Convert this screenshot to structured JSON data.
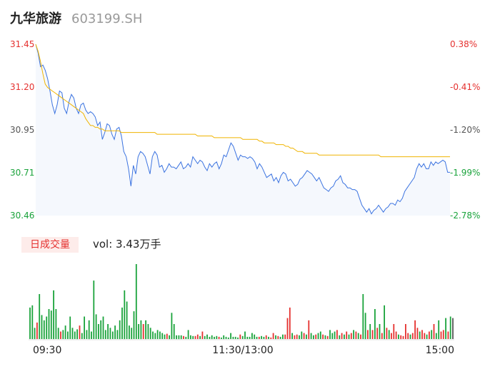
{
  "header": {
    "name": "九华旅游",
    "code": "603199.SH"
  },
  "volume": {
    "tag": "日成交量",
    "label": "vol: 3.43万手"
  },
  "chart_data": {
    "type": "line",
    "price_ticks": [
      "31.45",
      "31.20",
      "30.95",
      "30.71",
      "30.46"
    ],
    "pct_ticks": [
      "0.38%",
      "-0.41%",
      "-1.20%",
      "-1.99%",
      "-2.78%"
    ],
    "ylim": [
      30.46,
      31.45
    ],
    "time_labels": [
      "09:30",
      "11:30/13:00",
      "15:00"
    ],
    "colors": {
      "price": "#3b73e0",
      "avg": "#f0b400",
      "up": "#e5312f",
      "down": "#1aa33b",
      "neutral": "#555555"
    },
    "price_series": [
      31.45,
      31.4,
      31.32,
      31.33,
      31.3,
      31.25,
      31.18,
      31.1,
      31.05,
      31.1,
      31.18,
      31.17,
      31.08,
      31.05,
      31.12,
      31.16,
      31.14,
      31.08,
      31.05,
      31.1,
      31.11,
      31.07,
      31.05,
      31.06,
      31.05,
      31.03,
      30.98,
      31.0,
      30.9,
      30.94,
      30.99,
      30.98,
      30.93,
      30.9,
      30.96,
      30.97,
      30.92,
      30.83,
      30.8,
      30.73,
      30.63,
      30.75,
      30.7,
      30.8,
      30.83,
      30.82,
      30.8,
      30.75,
      30.7,
      30.8,
      30.83,
      30.81,
      30.74,
      30.75,
      30.71,
      30.73,
      30.76,
      30.74,
      30.74,
      30.73,
      30.75,
      30.77,
      30.73,
      30.74,
      30.76,
      30.74,
      30.8,
      30.78,
      30.76,
      30.78,
      30.77,
      30.74,
      30.72,
      30.76,
      30.74,
      30.76,
      30.77,
      30.73,
      30.76,
      30.81,
      30.8,
      30.84,
      30.88,
      30.86,
      30.82,
      30.78,
      30.81,
      30.8,
      30.8,
      30.79,
      30.8,
      30.79,
      30.77,
      30.73,
      30.76,
      30.74,
      30.71,
      30.68,
      30.69,
      30.7,
      30.66,
      30.68,
      30.65,
      30.69,
      30.71,
      30.7,
      30.66,
      30.67,
      30.65,
      30.63,
      30.64,
      30.67,
      30.68,
      30.7,
      30.72,
      30.71,
      30.7,
      30.68,
      30.66,
      30.68,
      30.65,
      30.62,
      30.61,
      30.6,
      30.62,
      30.63,
      30.66,
      30.67,
      30.69,
      30.65,
      30.64,
      30.62,
      30.62,
      30.61,
      30.61,
      30.6,
      30.56,
      30.52,
      30.5,
      30.48,
      30.5,
      30.47,
      30.49,
      30.5,
      30.52,
      30.5,
      30.48,
      30.5,
      30.51,
      30.53,
      30.53,
      30.52,
      30.55,
      30.54,
      30.56,
      30.6,
      30.62,
      30.64,
      30.66,
      30.68,
      30.73,
      30.76,
      30.74,
      30.76,
      30.73,
      30.73,
      30.77,
      30.75,
      30.77,
      30.76,
      30.77,
      30.78,
      30.77,
      30.71,
      30.71
    ],
    "avg_series": [
      31.45,
      31.41,
      31.35,
      31.28,
      31.22,
      31.2,
      31.19,
      31.18,
      31.17,
      31.16,
      31.15,
      31.14,
      31.13,
      31.12,
      31.11,
      31.1,
      31.09,
      31.08,
      31.07,
      31.06,
      31.05,
      31.02,
      31.0,
      30.98,
      30.98,
      30.97,
      30.97,
      30.96,
      30.96,
      30.95,
      30.95,
      30.95,
      30.95,
      30.95,
      30.95,
      30.95,
      30.94,
      30.94,
      30.94,
      30.94,
      30.94,
      30.94,
      30.94,
      30.94,
      30.94,
      30.94,
      30.94,
      30.94,
      30.94,
      30.94,
      30.94,
      30.93,
      30.93,
      30.93,
      30.93,
      30.93,
      30.93,
      30.93,
      30.93,
      30.93,
      30.93,
      30.93,
      30.93,
      30.93,
      30.93,
      30.93,
      30.93,
      30.93,
      30.92,
      30.92,
      30.92,
      30.92,
      30.92,
      30.92,
      30.92,
      30.91,
      30.91,
      30.91,
      30.91,
      30.91,
      30.91,
      30.91,
      30.91,
      30.91,
      30.91,
      30.91,
      30.91,
      30.9,
      30.9,
      30.9,
      30.9,
      30.9,
      30.9,
      30.9,
      30.89,
      30.89,
      30.88,
      30.88,
      30.88,
      30.88,
      30.88,
      30.87,
      30.87,
      30.87,
      30.87,
      30.86,
      30.86,
      30.85,
      30.85,
      30.84,
      30.83,
      30.83,
      30.83,
      30.82,
      30.82,
      30.82,
      30.82,
      30.82,
      30.82,
      30.81,
      30.81,
      30.81,
      30.81,
      30.81,
      30.81,
      30.81,
      30.81,
      30.81,
      30.81,
      30.81,
      30.81,
      30.81,
      30.81,
      30.81,
      30.81,
      30.81,
      30.81,
      30.81,
      30.81,
      30.81,
      30.81,
      30.81,
      30.81,
      30.81,
      30.81,
      30.8,
      30.8,
      30.8,
      30.8,
      30.8,
      30.8,
      30.8,
      30.8,
      30.8,
      30.8,
      30.8,
      30.8,
      30.8,
      30.8,
      30.8,
      30.8,
      30.8,
      30.8,
      30.8,
      30.8,
      30.8,
      30.8,
      30.8,
      30.8,
      30.8,
      30.8,
      30.8,
      30.8,
      30.8,
      30.8
    ],
    "volume_series": [
      {
        "v": 0.42,
        "c": "down"
      },
      {
        "v": 0.45,
        "c": "down"
      },
      {
        "v": 0.15,
        "c": "down"
      },
      {
        "v": 0.22,
        "c": "up"
      },
      {
        "v": 0.6,
        "c": "down"
      },
      {
        "v": 0.32,
        "c": "down"
      },
      {
        "v": 0.25,
        "c": "down"
      },
      {
        "v": 0.3,
        "c": "down"
      },
      {
        "v": 0.4,
        "c": "down"
      },
      {
        "v": 0.38,
        "c": "down"
      },
      {
        "v": 0.65,
        "c": "down"
      },
      {
        "v": 0.4,
        "c": "down"
      },
      {
        "v": 0.15,
        "c": "down"
      },
      {
        "v": 0.1,
        "c": "up"
      },
      {
        "v": 0.12,
        "c": "down"
      },
      {
        "v": 0.18,
        "c": "down"
      },
      {
        "v": 0.1,
        "c": "down"
      },
      {
        "v": 0.3,
        "c": "down"
      },
      {
        "v": 0.15,
        "c": "down"
      },
      {
        "v": 0.1,
        "c": "down"
      },
      {
        "v": 0.13,
        "c": "down"
      },
      {
        "v": 0.18,
        "c": "up"
      },
      {
        "v": 0.08,
        "c": "down"
      },
      {
        "v": 0.3,
        "c": "down"
      },
      {
        "v": 0.12,
        "c": "down"
      },
      {
        "v": 0.25,
        "c": "down"
      },
      {
        "v": 0.1,
        "c": "down"
      },
      {
        "v": 0.78,
        "c": "down"
      },
      {
        "v": 0.33,
        "c": "down"
      },
      {
        "v": 0.2,
        "c": "down"
      },
      {
        "v": 0.25,
        "c": "down"
      },
      {
        "v": 0.3,
        "c": "down"
      },
      {
        "v": 0.12,
        "c": "down"
      },
      {
        "v": 0.2,
        "c": "down"
      },
      {
        "v": 0.15,
        "c": "down"
      },
      {
        "v": 0.1,
        "c": "down"
      },
      {
        "v": 0.18,
        "c": "down"
      },
      {
        "v": 0.12,
        "c": "down"
      },
      {
        "v": 0.25,
        "c": "down"
      },
      {
        "v": 0.42,
        "c": "down"
      },
      {
        "v": 0.65,
        "c": "down"
      },
      {
        "v": 0.5,
        "c": "down"
      },
      {
        "v": 0.18,
        "c": "down"
      },
      {
        "v": 0.15,
        "c": "down"
      },
      {
        "v": 0.37,
        "c": "down"
      },
      {
        "v": 1.0,
        "c": "down"
      },
      {
        "v": 0.2,
        "c": "down"
      },
      {
        "v": 0.25,
        "c": "down"
      },
      {
        "v": 0.2,
        "c": "up"
      },
      {
        "v": 0.25,
        "c": "down"
      },
      {
        "v": 0.2,
        "c": "down"
      },
      {
        "v": 0.15,
        "c": "down"
      },
      {
        "v": 0.1,
        "c": "down"
      },
      {
        "v": 0.08,
        "c": "down"
      },
      {
        "v": 0.12,
        "c": "down"
      },
      {
        "v": 0.1,
        "c": "down"
      },
      {
        "v": 0.08,
        "c": "down"
      },
      {
        "v": 0.06,
        "c": "down"
      },
      {
        "v": 0.07,
        "c": "up"
      },
      {
        "v": 0.05,
        "c": "down"
      },
      {
        "v": 0.35,
        "c": "down"
      },
      {
        "v": 0.2,
        "c": "down"
      },
      {
        "v": 0.05,
        "c": "down"
      },
      {
        "v": 0.05,
        "c": "down"
      },
      {
        "v": 0.05,
        "c": "down"
      },
      {
        "v": 0.04,
        "c": "up"
      },
      {
        "v": 0.03,
        "c": "down"
      },
      {
        "v": 0.12,
        "c": "down"
      },
      {
        "v": 0.05,
        "c": "down"
      },
      {
        "v": 0.04,
        "c": "down"
      },
      {
        "v": 0.04,
        "c": "up"
      },
      {
        "v": 0.06,
        "c": "up"
      },
      {
        "v": 0.04,
        "c": "down"
      },
      {
        "v": 0.1,
        "c": "up"
      },
      {
        "v": 0.04,
        "c": "down"
      },
      {
        "v": 0.06,
        "c": "down"
      },
      {
        "v": 0.03,
        "c": "down"
      },
      {
        "v": 0.05,
        "c": "down"
      },
      {
        "v": 0.03,
        "c": "down"
      },
      {
        "v": 0.04,
        "c": "down"
      },
      {
        "v": 0.03,
        "c": "up"
      },
      {
        "v": 0.02,
        "c": "down"
      },
      {
        "v": 0.05,
        "c": "down"
      },
      {
        "v": 0.03,
        "c": "down"
      },
      {
        "v": 0.02,
        "c": "down"
      },
      {
        "v": 0.08,
        "c": "down"
      },
      {
        "v": 0.03,
        "c": "down"
      },
      {
        "v": 0.03,
        "c": "down"
      },
      {
        "v": 0.02,
        "c": "down"
      },
      {
        "v": 0.06,
        "c": "up"
      },
      {
        "v": 0.04,
        "c": "down"
      },
      {
        "v": 0.1,
        "c": "down"
      },
      {
        "v": 0.03,
        "c": "down"
      },
      {
        "v": 0.03,
        "c": "down"
      },
      {
        "v": 0.08,
        "c": "down"
      },
      {
        "v": 0.06,
        "c": "down"
      },
      {
        "v": 0.03,
        "c": "down"
      },
      {
        "v": 0.03,
        "c": "up"
      },
      {
        "v": 0.04,
        "c": "down"
      },
      {
        "v": 0.03,
        "c": "down"
      },
      {
        "v": 0.05,
        "c": "up"
      },
      {
        "v": 0.03,
        "c": "down"
      },
      {
        "v": 0.02,
        "c": "up"
      },
      {
        "v": 0.08,
        "c": "up"
      },
      {
        "v": 0.05,
        "c": "down"
      },
      {
        "v": 0.04,
        "c": "up"
      },
      {
        "v": 0.03,
        "c": "down"
      },
      {
        "v": 0.06,
        "c": "down"
      },
      {
        "v": 0.06,
        "c": "up"
      },
      {
        "v": 0.28,
        "c": "up"
      },
      {
        "v": 0.42,
        "c": "up"
      },
      {
        "v": 0.08,
        "c": "down"
      },
      {
        "v": 0.05,
        "c": "up"
      },
      {
        "v": 0.06,
        "c": "up"
      },
      {
        "v": 0.05,
        "c": "down"
      },
      {
        "v": 0.1,
        "c": "down"
      },
      {
        "v": 0.08,
        "c": "up"
      },
      {
        "v": 0.06,
        "c": "down"
      },
      {
        "v": 0.25,
        "c": "up"
      },
      {
        "v": 0.08,
        "c": "down"
      },
      {
        "v": 0.05,
        "c": "down"
      },
      {
        "v": 0.06,
        "c": "up"
      },
      {
        "v": 0.08,
        "c": "down"
      },
      {
        "v": 0.1,
        "c": "down"
      },
      {
        "v": 0.06,
        "c": "up"
      },
      {
        "v": 0.05,
        "c": "down"
      },
      {
        "v": 0.04,
        "c": "up"
      },
      {
        "v": 0.12,
        "c": "down"
      },
      {
        "v": 0.08,
        "c": "down"
      },
      {
        "v": 0.1,
        "c": "down"
      },
      {
        "v": 0.12,
        "c": "up"
      },
      {
        "v": 0.05,
        "c": "down"
      },
      {
        "v": 0.08,
        "c": "up"
      },
      {
        "v": 0.06,
        "c": "down"
      },
      {
        "v": 0.1,
        "c": "up"
      },
      {
        "v": 0.06,
        "c": "down"
      },
      {
        "v": 0.08,
        "c": "up"
      },
      {
        "v": 0.12,
        "c": "down"
      },
      {
        "v": 0.1,
        "c": "up"
      },
      {
        "v": 0.08,
        "c": "down"
      },
      {
        "v": 0.06,
        "c": "up"
      },
      {
        "v": 0.6,
        "c": "down"
      },
      {
        "v": 0.35,
        "c": "down"
      },
      {
        "v": 0.12,
        "c": "up"
      },
      {
        "v": 0.2,
        "c": "down"
      },
      {
        "v": 0.12,
        "c": "up"
      },
      {
        "v": 0.4,
        "c": "down"
      },
      {
        "v": 0.15,
        "c": "up"
      },
      {
        "v": 0.2,
        "c": "down"
      },
      {
        "v": 0.08,
        "c": "up"
      },
      {
        "v": 0.45,
        "c": "down"
      },
      {
        "v": 0.15,
        "c": "up"
      },
      {
        "v": 0.12,
        "c": "down"
      },
      {
        "v": 0.08,
        "c": "up"
      },
      {
        "v": 0.2,
        "c": "up"
      },
      {
        "v": 0.1,
        "c": "up"
      },
      {
        "v": 0.06,
        "c": "down"
      },
      {
        "v": 0.05,
        "c": "up"
      },
      {
        "v": 0.04,
        "c": "up"
      },
      {
        "v": 0.2,
        "c": "up"
      },
      {
        "v": 0.08,
        "c": "up"
      },
      {
        "v": 0.06,
        "c": "down"
      },
      {
        "v": 0.08,
        "c": "up"
      },
      {
        "v": 0.25,
        "c": "up"
      },
      {
        "v": 0.15,
        "c": "up"
      },
      {
        "v": 0.1,
        "c": "down"
      },
      {
        "v": 0.12,
        "c": "up"
      },
      {
        "v": 0.08,
        "c": "up"
      },
      {
        "v": 0.06,
        "c": "down"
      },
      {
        "v": 0.1,
        "c": "up"
      },
      {
        "v": 0.12,
        "c": "down"
      },
      {
        "v": 0.2,
        "c": "up"
      },
      {
        "v": 0.08,
        "c": "down"
      },
      {
        "v": 0.25,
        "c": "down"
      },
      {
        "v": 0.1,
        "c": "up"
      },
      {
        "v": 0.12,
        "c": "up"
      },
      {
        "v": 0.28,
        "c": "down"
      },
      {
        "v": 0.1,
        "c": "up"
      },
      {
        "v": 0.3,
        "c": "down"
      },
      {
        "v": 0.28,
        "c": "neutral"
      }
    ]
  }
}
